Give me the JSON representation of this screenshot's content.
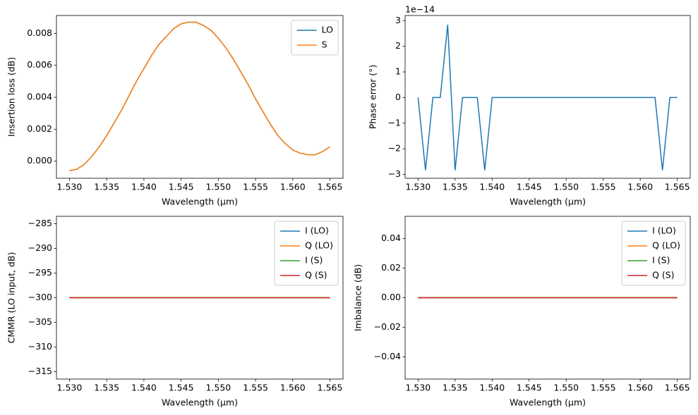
{
  "chart_data": [
    {
      "type": "line",
      "y_label": "Insertion loss (dB)",
      "x_label": "Wavelength (µm)",
      "legend": "upper right",
      "x": [
        1.53,
        1.531,
        1.532,
        1.533,
        1.534,
        1.535,
        1.536,
        1.537,
        1.538,
        1.539,
        1.54,
        1.541,
        1.542,
        1.543,
        1.544,
        1.545,
        1.546,
        1.547,
        1.548,
        1.549,
        1.55,
        1.551,
        1.552,
        1.553,
        1.554,
        1.555,
        1.556,
        1.557,
        1.558,
        1.559,
        1.56,
        1.561,
        1.562,
        1.563,
        1.564,
        1.565
      ],
      "series": [
        {
          "name": "LO",
          "color": "#1f77b4",
          "values": [
            -0.0006,
            -0.0005,
            -0.0002,
            0.0003,
            0.0009,
            0.0016,
            0.0024,
            0.0032,
            0.0041,
            0.005,
            0.0058,
            0.0066,
            0.0073,
            0.0078,
            0.0083,
            0.0086,
            0.0087,
            0.0087,
            0.0085,
            0.0082,
            0.0077,
            0.0071,
            0.0064,
            0.0056,
            0.0048,
            0.0039,
            0.0031,
            0.0023,
            0.0016,
            0.0011,
            0.0007,
            0.0005,
            0.0004,
            0.0004,
            0.0006,
            0.0009
          ]
        },
        {
          "name": "S",
          "color": "#ff7f0e",
          "values": [
            -0.0006,
            -0.0005,
            -0.0002,
            0.0003,
            0.0009,
            0.0016,
            0.0024,
            0.0032,
            0.0041,
            0.005,
            0.0058,
            0.0066,
            0.0073,
            0.0078,
            0.0083,
            0.0086,
            0.0087,
            0.0087,
            0.0085,
            0.0082,
            0.0077,
            0.0071,
            0.0064,
            0.0056,
            0.0048,
            0.0039,
            0.0031,
            0.0023,
            0.0016,
            0.0011,
            0.0007,
            0.0005,
            0.0004,
            0.0004,
            0.0006,
            0.0009
          ]
        }
      ],
      "xlim": [
        1.52825,
        1.56675
      ],
      "xticks": [
        {
          "value": 1.53,
          "label": "1.530"
        },
        {
          "value": 1.535,
          "label": "1.535"
        },
        {
          "value": 1.54,
          "label": "1.540"
        },
        {
          "value": 1.545,
          "label": "1.545"
        },
        {
          "value": 1.55,
          "label": "1.550"
        },
        {
          "value": 1.555,
          "label": "1.555"
        },
        {
          "value": 1.56,
          "label": "1.560"
        },
        {
          "value": 1.565,
          "label": "1.565"
        }
      ],
      "ylim": [
        -0.00107,
        0.00912
      ],
      "yticks": [
        {
          "value": 0,
          "label": "0.000"
        },
        {
          "value": 0.002,
          "label": "0.002"
        },
        {
          "value": 0.004,
          "label": "0.004"
        },
        {
          "value": 0.006,
          "label": "0.006"
        },
        {
          "value": 0.008,
          "label": "0.008"
        }
      ]
    },
    {
      "type": "line",
      "y_label": "Phase error (°)",
      "x_label": "Wavelength (µm)",
      "offset_text": "1e−14",
      "x": [
        1.53,
        1.531,
        1.532,
        1.533,
        1.534,
        1.535,
        1.536,
        1.537,
        1.538,
        1.539,
        1.54,
        1.541,
        1.542,
        1.543,
        1.544,
        1.545,
        1.546,
        1.547,
        1.548,
        1.549,
        1.55,
        1.551,
        1.552,
        1.553,
        1.554,
        1.555,
        1.556,
        1.557,
        1.558,
        1.559,
        1.56,
        1.561,
        1.562,
        1.563,
        1.564,
        1.565
      ],
      "series": [
        {
          "color": "#1f77b4",
          "values": [
            0,
            -2.84,
            0,
            0,
            2.84,
            -2.84,
            0,
            0,
            0,
            -2.84,
            0,
            0,
            0,
            0,
            0,
            0,
            0,
            0,
            0,
            0,
            0,
            0,
            0,
            0,
            0,
            0,
            0,
            0,
            0,
            0,
            0,
            0,
            0,
            -2.84,
            0,
            0
          ]
        }
      ],
      "xlim": [
        1.52825,
        1.56675
      ],
      "xticks": [
        {
          "value": 1.53,
          "label": "1.530"
        },
        {
          "value": 1.535,
          "label": "1.535"
        },
        {
          "value": 1.54,
          "label": "1.540"
        },
        {
          "value": 1.545,
          "label": "1.545"
        },
        {
          "value": 1.55,
          "label": "1.550"
        },
        {
          "value": 1.555,
          "label": "1.555"
        },
        {
          "value": 1.56,
          "label": "1.560"
        },
        {
          "value": 1.565,
          "label": "1.565"
        }
      ],
      "ylim": [
        -3.15,
        3.2
      ],
      "yticks": [
        {
          "value": -3,
          "label": "−3"
        },
        {
          "value": -2,
          "label": "−2"
        },
        {
          "value": -1,
          "label": "−1"
        },
        0,
        1,
        2,
        3
      ]
    },
    {
      "type": "line",
      "y_label": "CMMR (LO input, dB)",
      "x_label": "Wavelength (µm)",
      "legend": "upper right",
      "x": [
        1.53,
        1.531,
        1.532,
        1.533,
        1.534,
        1.535,
        1.536,
        1.537,
        1.538,
        1.539,
        1.54,
        1.541,
        1.542,
        1.543,
        1.544,
        1.545,
        1.546,
        1.547,
        1.548,
        1.549,
        1.55,
        1.551,
        1.552,
        1.553,
        1.554,
        1.555,
        1.556,
        1.557,
        1.558,
        1.559,
        1.56,
        1.561,
        1.562,
        1.563,
        1.564,
        1.565
      ],
      "series": [
        {
          "name": "I (LO)",
          "color": "#1f77b4",
          "values": [
            -300,
            -300,
            -300,
            -300,
            -300,
            -300,
            -300,
            -300,
            -300,
            -300,
            -300,
            -300,
            -300,
            -300,
            -300,
            -300,
            -300,
            -300,
            -300,
            -300,
            -300,
            -300,
            -300,
            -300,
            -300,
            -300,
            -300,
            -300,
            -300,
            -300,
            -300,
            -300,
            -300,
            -300,
            -300,
            -300
          ]
        },
        {
          "name": "Q (LO)",
          "color": "#ff7f0e",
          "values": [
            -300,
            -300,
            -300,
            -300,
            -300,
            -300,
            -300,
            -300,
            -300,
            -300,
            -300,
            -300,
            -300,
            -300,
            -300,
            -300,
            -300,
            -300,
            -300,
            -300,
            -300,
            -300,
            -300,
            -300,
            -300,
            -300,
            -300,
            -300,
            -300,
            -300,
            -300,
            -300,
            -300,
            -300,
            -300,
            -300
          ]
        },
        {
          "name": "I (S)",
          "color": "#2ca02c",
          "values": [
            -300,
            -300,
            -300,
            -300,
            -300,
            -300,
            -300,
            -300,
            -300,
            -300,
            -300,
            -300,
            -300,
            -300,
            -300,
            -300,
            -300,
            -300,
            -300,
            -300,
            -300,
            -300,
            -300,
            -300,
            -300,
            -300,
            -300,
            -300,
            -300,
            -300,
            -300,
            -300,
            -300,
            -300,
            -300,
            -300
          ]
        },
        {
          "name": "Q (S)",
          "color": "#d62728",
          "values": [
            -300,
            -300,
            -300,
            -300,
            -300,
            -300,
            -300,
            -300,
            -300,
            -300,
            -300,
            -300,
            -300,
            -300,
            -300,
            -300,
            -300,
            -300,
            -300,
            -300,
            -300,
            -300,
            -300,
            -300,
            -300,
            -300,
            -300,
            -300,
            -300,
            -300,
            -300,
            -300,
            -300,
            -300,
            -300,
            -300
          ]
        }
      ],
      "xlim": [
        1.52825,
        1.56675
      ],
      "xticks": [
        {
          "value": 1.53,
          "label": "1.530"
        },
        {
          "value": 1.535,
          "label": "1.535"
        },
        {
          "value": 1.54,
          "label": "1.540"
        },
        {
          "value": 1.545,
          "label": "1.545"
        },
        {
          "value": 1.55,
          "label": "1.550"
        },
        {
          "value": 1.555,
          "label": "1.555"
        },
        {
          "value": 1.56,
          "label": "1.560"
        },
        {
          "value": 1.565,
          "label": "1.565"
        }
      ],
      "ylim": [
        -316.5,
        -283.5
      ],
      "yticks": [
        {
          "value": -315,
          "label": "−315"
        },
        {
          "value": -310,
          "label": "−310"
        },
        {
          "value": -305,
          "label": "−305"
        },
        {
          "value": -300,
          "label": "−300"
        },
        {
          "value": -295,
          "label": "−295"
        },
        {
          "value": -290,
          "label": "−290"
        },
        {
          "value": -285,
          "label": "−285"
        }
      ]
    },
    {
      "type": "line",
      "y_label": "Imbalance (dB)",
      "x_label": "Wavelength (µm)",
      "legend": "upper right",
      "x": [
        1.53,
        1.531,
        1.532,
        1.533,
        1.534,
        1.535,
        1.536,
        1.537,
        1.538,
        1.539,
        1.54,
        1.541,
        1.542,
        1.543,
        1.544,
        1.545,
        1.546,
        1.547,
        1.548,
        1.549,
        1.55,
        1.551,
        1.552,
        1.553,
        1.554,
        1.555,
        1.556,
        1.557,
        1.558,
        1.559,
        1.56,
        1.561,
        1.562,
        1.563,
        1.564,
        1.565
      ],
      "series": [
        {
          "name": "I (LO)",
          "color": "#1f77b4",
          "values": [
            0,
            0,
            0,
            0,
            0,
            0,
            0,
            0,
            0,
            0,
            0,
            0,
            0,
            0,
            0,
            0,
            0,
            0,
            0,
            0,
            0,
            0,
            0,
            0,
            0,
            0,
            0,
            0,
            0,
            0,
            0,
            0,
            0,
            0,
            0,
            0
          ]
        },
        {
          "name": "Q (LO)",
          "color": "#ff7f0e",
          "values": [
            0,
            0,
            0,
            0,
            0,
            0,
            0,
            0,
            0,
            0,
            0,
            0,
            0,
            0,
            0,
            0,
            0,
            0,
            0,
            0,
            0,
            0,
            0,
            0,
            0,
            0,
            0,
            0,
            0,
            0,
            0,
            0,
            0,
            0,
            0,
            0
          ]
        },
        {
          "name": "I (S)",
          "color": "#2ca02c",
          "values": [
            0,
            0,
            0,
            0,
            0,
            0,
            0,
            0,
            0,
            0,
            0,
            0,
            0,
            0,
            0,
            0,
            0,
            0,
            0,
            0,
            0,
            0,
            0,
            0,
            0,
            0,
            0,
            0,
            0,
            0,
            0,
            0,
            0,
            0,
            0,
            0
          ]
        },
        {
          "name": "Q (S)",
          "color": "#d62728",
          "values": [
            0,
            0,
            0,
            0,
            0,
            0,
            0,
            0,
            0,
            0,
            0,
            0,
            0,
            0,
            0,
            0,
            0,
            0,
            0,
            0,
            0,
            0,
            0,
            0,
            0,
            0,
            0,
            0,
            0,
            0,
            0,
            0,
            0,
            0,
            0,
            0
          ]
        }
      ],
      "xlim": [
        1.52825,
        1.56675
      ],
      "xticks": [
        {
          "value": 1.53,
          "label": "1.530"
        },
        {
          "value": 1.535,
          "label": "1.535"
        },
        {
          "value": 1.54,
          "label": "1.540"
        },
        {
          "value": 1.545,
          "label": "1.545"
        },
        {
          "value": 1.55,
          "label": "1.550"
        },
        {
          "value": 1.555,
          "label": "1.555"
        },
        {
          "value": 1.56,
          "label": "1.560"
        },
        {
          "value": 1.565,
          "label": "1.565"
        }
      ],
      "ylim": [
        -0.055,
        0.055
      ],
      "yticks": [
        {
          "value": -0.04,
          "label": "−0.04"
        },
        {
          "value": -0.02,
          "label": "−0.02"
        },
        {
          "value": 0,
          "label": "0.00"
        },
        {
          "value": 0.02,
          "label": "0.02"
        },
        {
          "value": 0.04,
          "label": "0.04"
        }
      ]
    }
  ]
}
